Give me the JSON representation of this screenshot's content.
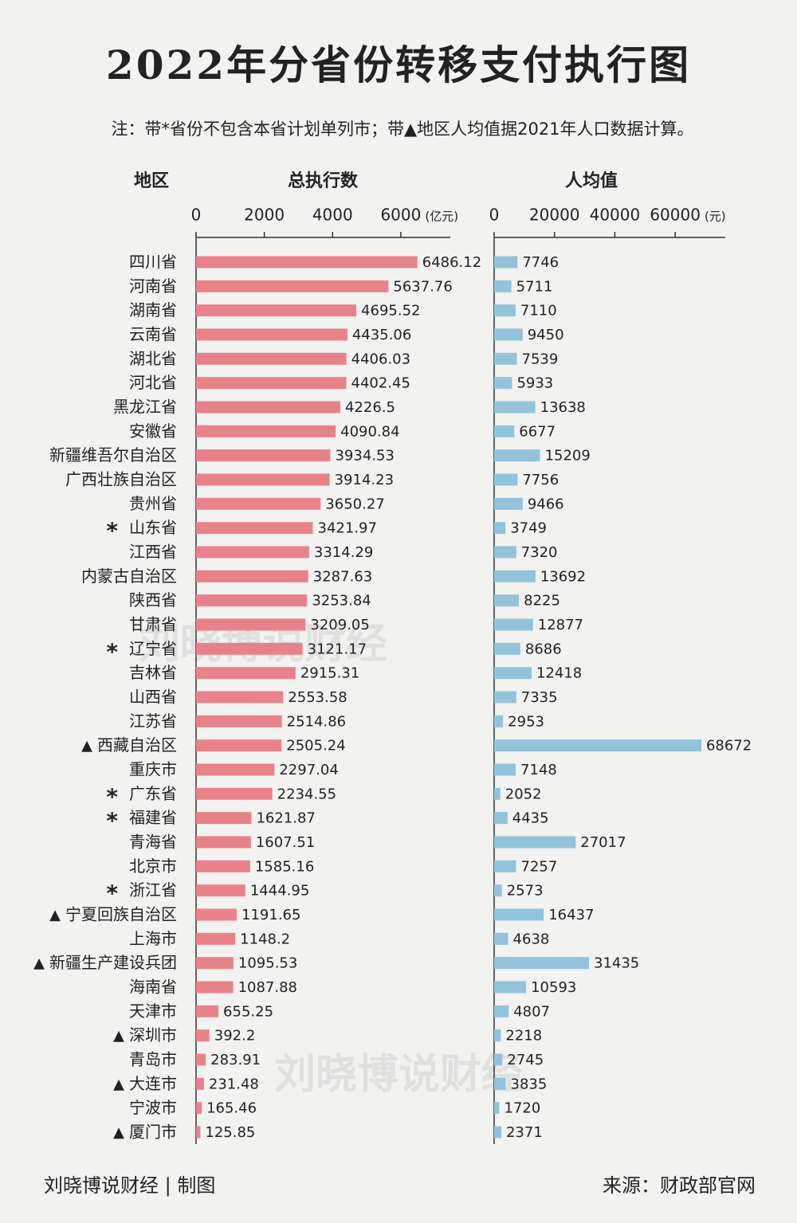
{
  "chart_data": {
    "type": "bar",
    "title": "2022年分省份转移支付执行图",
    "subtitle": "注：带*省份不包含本省计划单列市；带▲地区人均值据2021年人口数据计算。",
    "category_header": "地区",
    "categories": [
      "四川省",
      "河南省",
      "湖南省",
      "云南省",
      "湖北省",
      "河北省",
      "黑龙江省",
      "安徽省",
      "新疆维吾尔自治区",
      "广西壮族自治区",
      "贵州省",
      "山东省",
      "江西省",
      "内蒙古自治区",
      "陕西省",
      "甘肃省",
      "辽宁省",
      "吉林省",
      "山西省",
      "江苏省",
      "西藏自治区",
      "重庆市",
      "广东省",
      "福建省",
      "青海省",
      "北京市",
      "浙江省",
      "宁夏回族自治区",
      "上海市",
      "新疆生产建设兵团",
      "海南省",
      "天津市",
      "深圳市",
      "青岛市",
      "大连市",
      "宁波市",
      "厦门市"
    ],
    "markers": [
      null,
      null,
      null,
      null,
      null,
      null,
      null,
      null,
      null,
      null,
      null,
      "*",
      null,
      null,
      null,
      null,
      "*",
      null,
      null,
      null,
      "▲",
      null,
      "*",
      "*",
      null,
      null,
      "*",
      "▲",
      null,
      "▲",
      null,
      null,
      "▲",
      null,
      "▲",
      null,
      "▲"
    ],
    "panels": [
      {
        "header": "总执行数",
        "unit": "(亿元)",
        "color": "#e8828a",
        "xlim": [
          0,
          7450
        ],
        "xticks": [
          0,
          2000,
          4000,
          6000
        ],
        "values": [
          6486.12,
          5637.76,
          4695.52,
          4435.06,
          4406.03,
          4402.45,
          4226.5,
          4090.84,
          3934.53,
          3914.23,
          3650.27,
          3421.97,
          3314.29,
          3287.63,
          3253.84,
          3209.05,
          3121.17,
          2915.31,
          2553.58,
          2514.86,
          2505.24,
          2297.04,
          2234.55,
          1621.87,
          1607.51,
          1585.16,
          1444.95,
          1191.65,
          1148.2,
          1095.53,
          1087.88,
          655.25,
          392.2,
          283.91,
          231.48,
          165.46,
          125.85
        ]
      },
      {
        "header": "人均值",
        "unit": "(元)",
        "color": "#92c3da",
        "xlim": [
          0,
          76600
        ],
        "xticks": [
          0,
          20000,
          40000,
          60000
        ],
        "values": [
          7746,
          5711,
          7110,
          9450,
          7539,
          5933,
          13638,
          6677,
          15209,
          7756,
          9466,
          3749,
          7320,
          13692,
          8225,
          12877,
          8686,
          12418,
          7335,
          2953,
          68672,
          7148,
          2052,
          4435,
          27017,
          7257,
          2573,
          16437,
          4638,
          31435,
          10593,
          4807,
          2218,
          2745,
          3835,
          1720,
          2371
        ]
      }
    ],
    "watermark": "刘晓博说财经",
    "credit": "刘晓博说财经 | 制图",
    "source": "来源：财政部官网"
  }
}
